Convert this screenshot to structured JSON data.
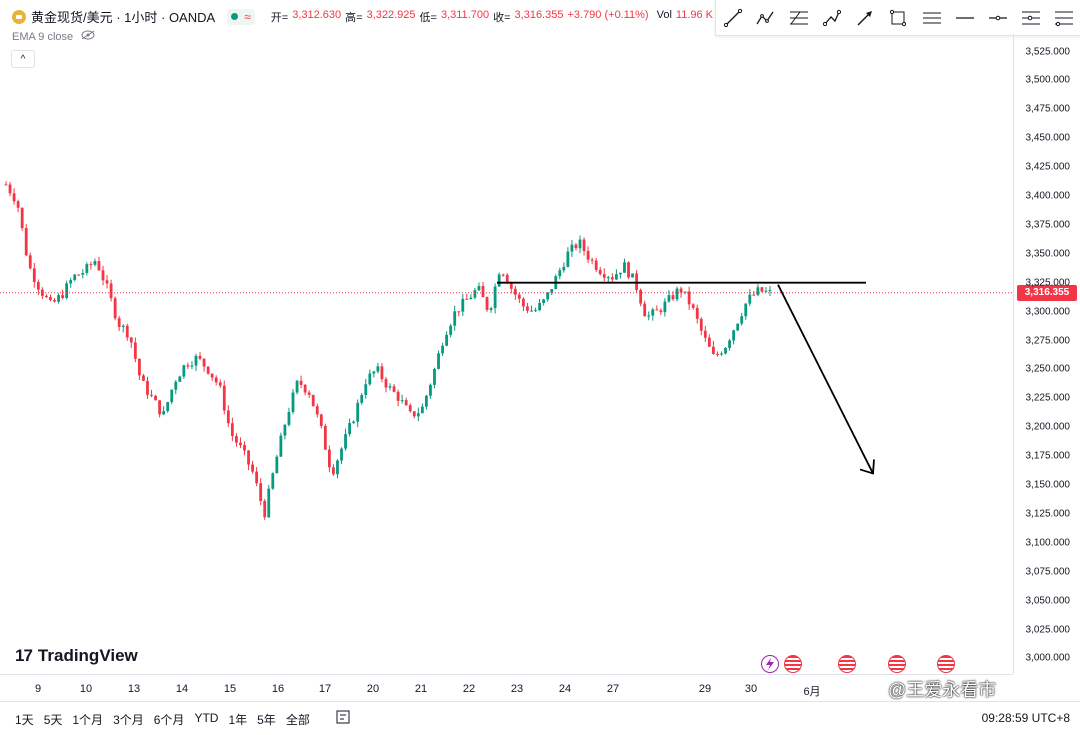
{
  "header": {
    "symbol_title": "黄金现货/美元 · 1小时 · OANDA",
    "approx_symbol": "≈",
    "ohlc": {
      "open_label": "开=",
      "open": "3,312.630",
      "high_label": "高=",
      "high": "3,322.925",
      "low_label": "低=",
      "low": "3,311.700",
      "close_label": "收=",
      "close": "3,316.355",
      "change": "+3.790 (+0.11%)",
      "vol_label": "Vol",
      "vol": "11.96 K"
    }
  },
  "indicator": {
    "label": "EMA 9 close"
  },
  "collapse_symbol": "^",
  "price_axis": {
    "ticks": [
      "3,525.000",
      "3,500.000",
      "3,475.000",
      "3,450.000",
      "3,425.000",
      "3,400.000",
      "3,375.000",
      "3,350.000",
      "3,325.000",
      "3,300.000",
      "3,275.000",
      "3,250.000",
      "3,225.000",
      "3,200.000",
      "3,175.000",
      "3,150.000",
      "3,125.000",
      "3,100.000",
      "3,075.000",
      "3,050.000",
      "3,025.000",
      "3,000.000"
    ],
    "current_price": "3,316.355",
    "current_price_color": "#f23645"
  },
  "time_axis": {
    "ticks": [
      "9",
      "10",
      "13",
      "14",
      "15",
      "16",
      "17",
      "20",
      "21",
      "22",
      "23",
      "24",
      "27",
      "29",
      "30",
      "6月"
    ]
  },
  "logo": {
    "mark": "17",
    "text": "TradingView"
  },
  "bottom_bar": {
    "ranges": [
      "1天",
      "5天",
      "1个月",
      "3个月",
      "6个月",
      "YTD",
      "1年",
      "5年",
      "全部"
    ],
    "compare_icon": "compare-icon",
    "clock": "09:28:59 UTC+8"
  },
  "watermark": "@王爱永看市",
  "colors": {
    "up": "#089981",
    "down": "#f23645",
    "line": "#000000"
  },
  "chart_data": {
    "type": "candlestick",
    "interval": "1h",
    "ylim": [
      3000,
      3525
    ],
    "x_categories": [
      "9",
      "10",
      "13",
      "14",
      "15",
      "16",
      "17",
      "20",
      "21",
      "22",
      "23",
      "24",
      "27",
      "29",
      "30",
      "6月"
    ],
    "close_path": [
      3410,
      3395,
      3340,
      3320,
      3305,
      3315,
      3330,
      3335,
      3345,
      3320,
      3290,
      3280,
      3240,
      3225,
      3210,
      3240,
      3255,
      3260,
      3250,
      3235,
      3195,
      3180,
      3160,
      3125,
      3170,
      3210,
      3240,
      3230,
      3200,
      3160,
      3185,
      3210,
      3240,
      3250,
      3235,
      3225,
      3210,
      3215,
      3245,
      3280,
      3300,
      3310,
      3320,
      3300,
      3340,
      3320,
      3305,
      3300,
      3310,
      3330,
      3350,
      3360,
      3345,
      3335,
      3330,
      3340,
      3325,
      3295,
      3300,
      3310,
      3320,
      3305,
      3280,
      3260,
      3270,
      3290,
      3310,
      3318,
      3316
    ],
    "annotations": {
      "horizontal_level": 3325,
      "arrow_direction": "down",
      "arrow_target": 3160
    }
  }
}
